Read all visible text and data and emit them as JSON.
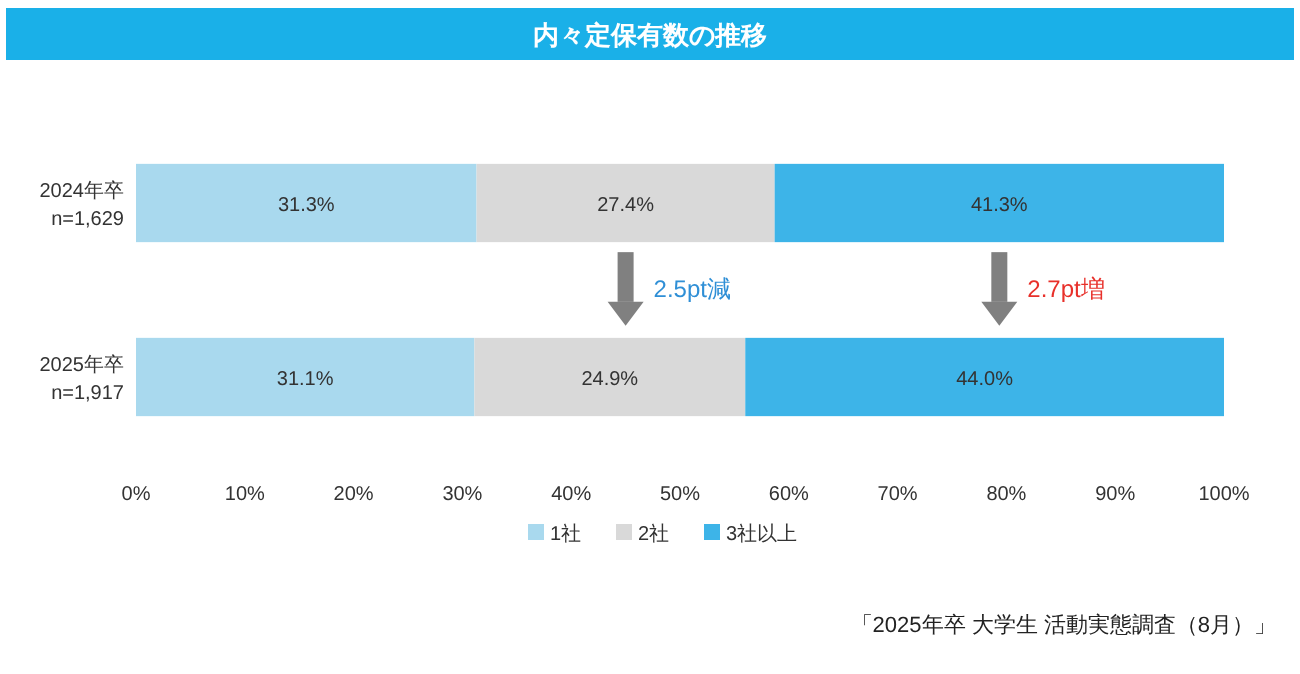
{
  "chart_data": {
    "type": "bar",
    "orientation": "horizontal",
    "stacked": true,
    "title": "内々定保有数の推移",
    "categories": [
      "2024年卒\nn=1,629",
      "2025年卒\nn=1,917"
    ],
    "series": [
      {
        "name": "1社",
        "color": "#a9d9ee",
        "values": [
          31.3,
          31.1
        ],
        "value_labels": [
          "31.3%",
          "31.1%"
        ]
      },
      {
        "name": "2社",
        "color": "#d9d9d9",
        "values": [
          27.4,
          24.9
        ],
        "value_labels": [
          "27.4%",
          "24.9%"
        ]
      },
      {
        "name": "3社以上",
        "color": "#3db4e8",
        "values": [
          41.3,
          44.0
        ],
        "value_labels": [
          "41.3%",
          "44.0%"
        ]
      }
    ],
    "xlim": [
      0,
      100
    ],
    "xticks": [
      {
        "value": 0,
        "label": "0%"
      },
      {
        "value": 10,
        "label": "10%"
      },
      {
        "value": 20,
        "label": "20%"
      },
      {
        "value": 30,
        "label": "30%"
      },
      {
        "value": 40,
        "label": "40%"
      },
      {
        "value": 50,
        "label": "50%"
      },
      {
        "value": 60,
        "label": "60%"
      },
      {
        "value": 70,
        "label": "70%"
      },
      {
        "value": 80,
        "label": "80%"
      },
      {
        "value": 90,
        "label": "90%"
      },
      {
        "value": 100,
        "label": "100%"
      }
    ],
    "legend": "bottom",
    "annotations": [
      "2.5pt減",
      "2.7pt増",
      "「2025年卒 大学生 活動実態調査（8月）」"
    ]
  }
}
